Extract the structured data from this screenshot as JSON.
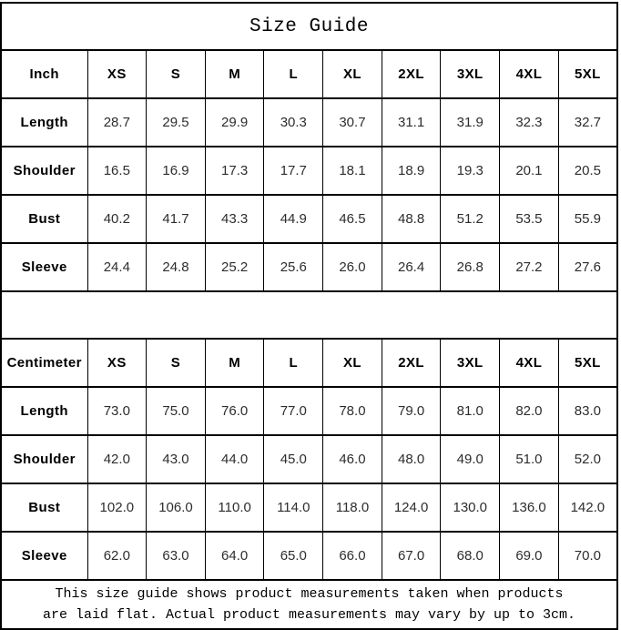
{
  "title": "Size Guide",
  "sizes": [
    "XS",
    "S",
    "M",
    "L",
    "XL",
    "2XL",
    "3XL",
    "4XL",
    "5XL"
  ],
  "inch": {
    "unit": "Inch",
    "rows": [
      {
        "label": "Length",
        "values": [
          "28.7",
          "29.5",
          "29.9",
          "30.3",
          "30.7",
          "31.1",
          "31.9",
          "32.3",
          "32.7"
        ]
      },
      {
        "label": "Shoulder",
        "values": [
          "16.5",
          "16.9",
          "17.3",
          "17.7",
          "18.1",
          "18.9",
          "19.3",
          "20.1",
          "20.5"
        ]
      },
      {
        "label": "Bust",
        "values": [
          "40.2",
          "41.7",
          "43.3",
          "44.9",
          "46.5",
          "48.8",
          "51.2",
          "53.5",
          "55.9"
        ]
      },
      {
        "label": "Sleeve",
        "values": [
          "24.4",
          "24.8",
          "25.2",
          "25.6",
          "26.0",
          "26.4",
          "26.8",
          "27.2",
          "27.6"
        ]
      }
    ]
  },
  "centimeter": {
    "unit": "Centimeter",
    "rows": [
      {
        "label": "Length",
        "values": [
          "73.0",
          "75.0",
          "76.0",
          "77.0",
          "78.0",
          "79.0",
          "81.0",
          "82.0",
          "83.0"
        ]
      },
      {
        "label": "Shoulder",
        "values": [
          "42.0",
          "43.0",
          "44.0",
          "45.0",
          "46.0",
          "48.0",
          "49.0",
          "51.0",
          "52.0"
        ]
      },
      {
        "label": "Bust",
        "values": [
          "102.0",
          "106.0",
          "110.0",
          "114.0",
          "118.0",
          "124.0",
          "130.0",
          "136.0",
          "142.0"
        ]
      },
      {
        "label": "Sleeve",
        "values": [
          "62.0",
          "63.0",
          "64.0",
          "65.0",
          "66.0",
          "67.0",
          "68.0",
          "69.0",
          "70.0"
        ]
      }
    ]
  },
  "footer": {
    "line1": "This size guide shows product measurements taken when products",
    "line2": "are laid flat. Actual product measurements may vary by up to 3cm."
  }
}
